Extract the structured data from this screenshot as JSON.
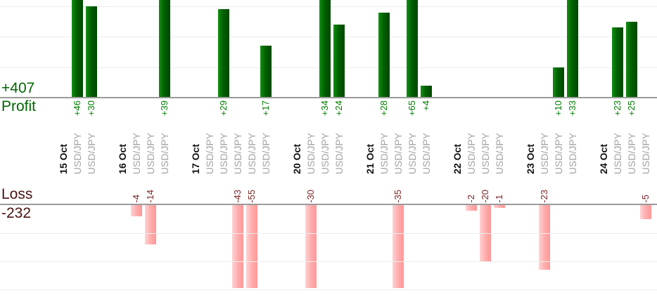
{
  "summary": {
    "profit_total_label": "+407",
    "profit_caption": "Profit",
    "loss_caption": "Loss",
    "loss_total_label": "-232"
  },
  "colors": {
    "profit_text": "#006600",
    "profit_value_label": "#007d00",
    "profit_bar": "#026002",
    "loss_text": "#4a1212",
    "loss_value_label": "#7b2424",
    "loss_bar": "#ffaaaa",
    "axis_line": "#9a9a9a",
    "gridline": "#ededed",
    "date_label": "#111111",
    "instrument_label": "#a3a3a3"
  },
  "chart_data": {
    "type": "bar",
    "orientation": "vertical",
    "upper_panel_label": "Profit",
    "lower_panel_label": "Loss",
    "profit_total": 407,
    "loss_total": -232,
    "grid": true,
    "grid_step": 10,
    "visible_profit_axis_max": 32,
    "visible_loss_axis_min": -30,
    "groups": [
      {
        "date": "15 Oct",
        "trades": [
          {
            "instrument": "USD/JPY",
            "value": 46,
            "label": "+46"
          },
          {
            "instrument": "USD/JPY",
            "value": 30,
            "label": "+30"
          }
        ]
      },
      {
        "date": "16 Oct",
        "trades": [
          {
            "instrument": "USD/JPY",
            "value": -4,
            "label": "-4"
          },
          {
            "instrument": "USD/JPY",
            "value": -14,
            "label": "-14"
          },
          {
            "instrument": "USD/JPY",
            "value": 39,
            "label": "+39"
          }
        ]
      },
      {
        "date": "17 Oct",
        "trades": [
          {
            "instrument": "USD/JPY",
            "value": 0,
            "label": ""
          },
          {
            "instrument": "USD/JPY",
            "value": 29,
            "label": "+29"
          },
          {
            "instrument": "USD/JPY",
            "value": -43,
            "label": "-43"
          },
          {
            "instrument": "USD/JPY",
            "value": -55,
            "label": "-55"
          },
          {
            "instrument": "USD/JPY",
            "value": 17,
            "label": "+17"
          }
        ]
      },
      {
        "date": "20 Oct",
        "trades": [
          {
            "instrument": "USD/JPY",
            "value": -30,
            "label": "-30"
          },
          {
            "instrument": "USD/JPY",
            "value": 34,
            "label": "+34"
          },
          {
            "instrument": "USD/JPY",
            "value": 24,
            "label": "+24"
          }
        ]
      },
      {
        "date": "21 Oct",
        "trades": [
          {
            "instrument": "USD/JPY",
            "value": 28,
            "label": "+28"
          },
          {
            "instrument": "USD/JPY",
            "value": -35,
            "label": "-35"
          },
          {
            "instrument": "USD/JPY",
            "value": 65,
            "label": "+65"
          },
          {
            "instrument": "USD/JPY",
            "value": 4,
            "label": "+4"
          }
        ]
      },
      {
        "date": "22 Oct",
        "trades": [
          {
            "instrument": "USD/JPY",
            "value": -2,
            "label": "-2"
          },
          {
            "instrument": "USD/JPY",
            "value": -20,
            "label": "-20"
          },
          {
            "instrument": "USD/JPY",
            "value": -1,
            "label": "-1"
          }
        ]
      },
      {
        "date": "23 Oct",
        "trades": [
          {
            "instrument": "USD/JPY",
            "value": -23,
            "label": "-23"
          },
          {
            "instrument": "USD/JPY",
            "value": 10,
            "label": "+10"
          },
          {
            "instrument": "USD/JPY",
            "value": 33,
            "label": "+33"
          }
        ]
      },
      {
        "date": "24 Oct",
        "trades": [
          {
            "instrument": "USD/JPY",
            "value": 23,
            "label": "+23"
          },
          {
            "instrument": "USD/JPY",
            "value": 25,
            "label": "+25"
          },
          {
            "instrument": "USD/JPY",
            "value": -5,
            "label": "-5"
          }
        ]
      }
    ]
  }
}
